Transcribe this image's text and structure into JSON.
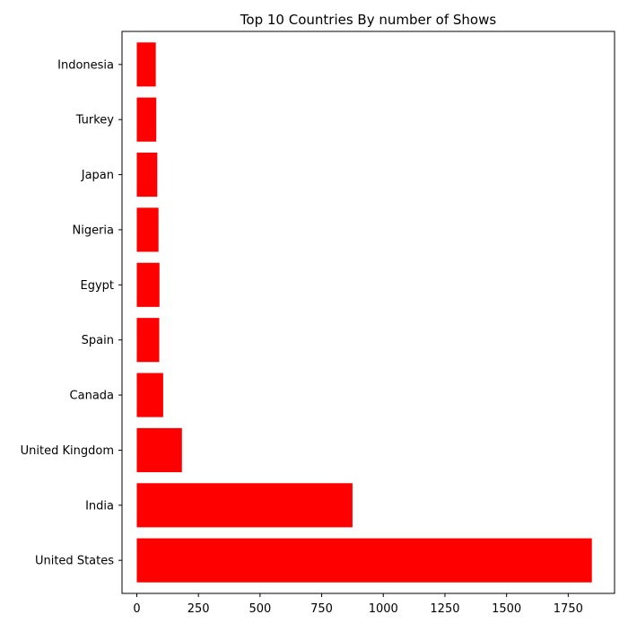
{
  "chart_data": {
    "type": "bar",
    "orientation": "horizontal",
    "title": "Top 10 Countries By number of Shows",
    "xlabel": "",
    "ylabel": "",
    "categories": [
      "United States",
      "India",
      "United Kingdom",
      "Canada",
      "Spain",
      "Egypt",
      "Nigeria",
      "Japan",
      "Turkey",
      "Indonesia"
    ],
    "values": [
      1846,
      875,
      183,
      107,
      91,
      92,
      88,
      83,
      79,
      77
    ],
    "xlim": [
      -60,
      1938
    ],
    "xticks": [
      0,
      250,
      500,
      750,
      1000,
      1250,
      1500,
      1750
    ],
    "bar_color": "#ff0000",
    "grid": false,
    "legend": "none"
  }
}
